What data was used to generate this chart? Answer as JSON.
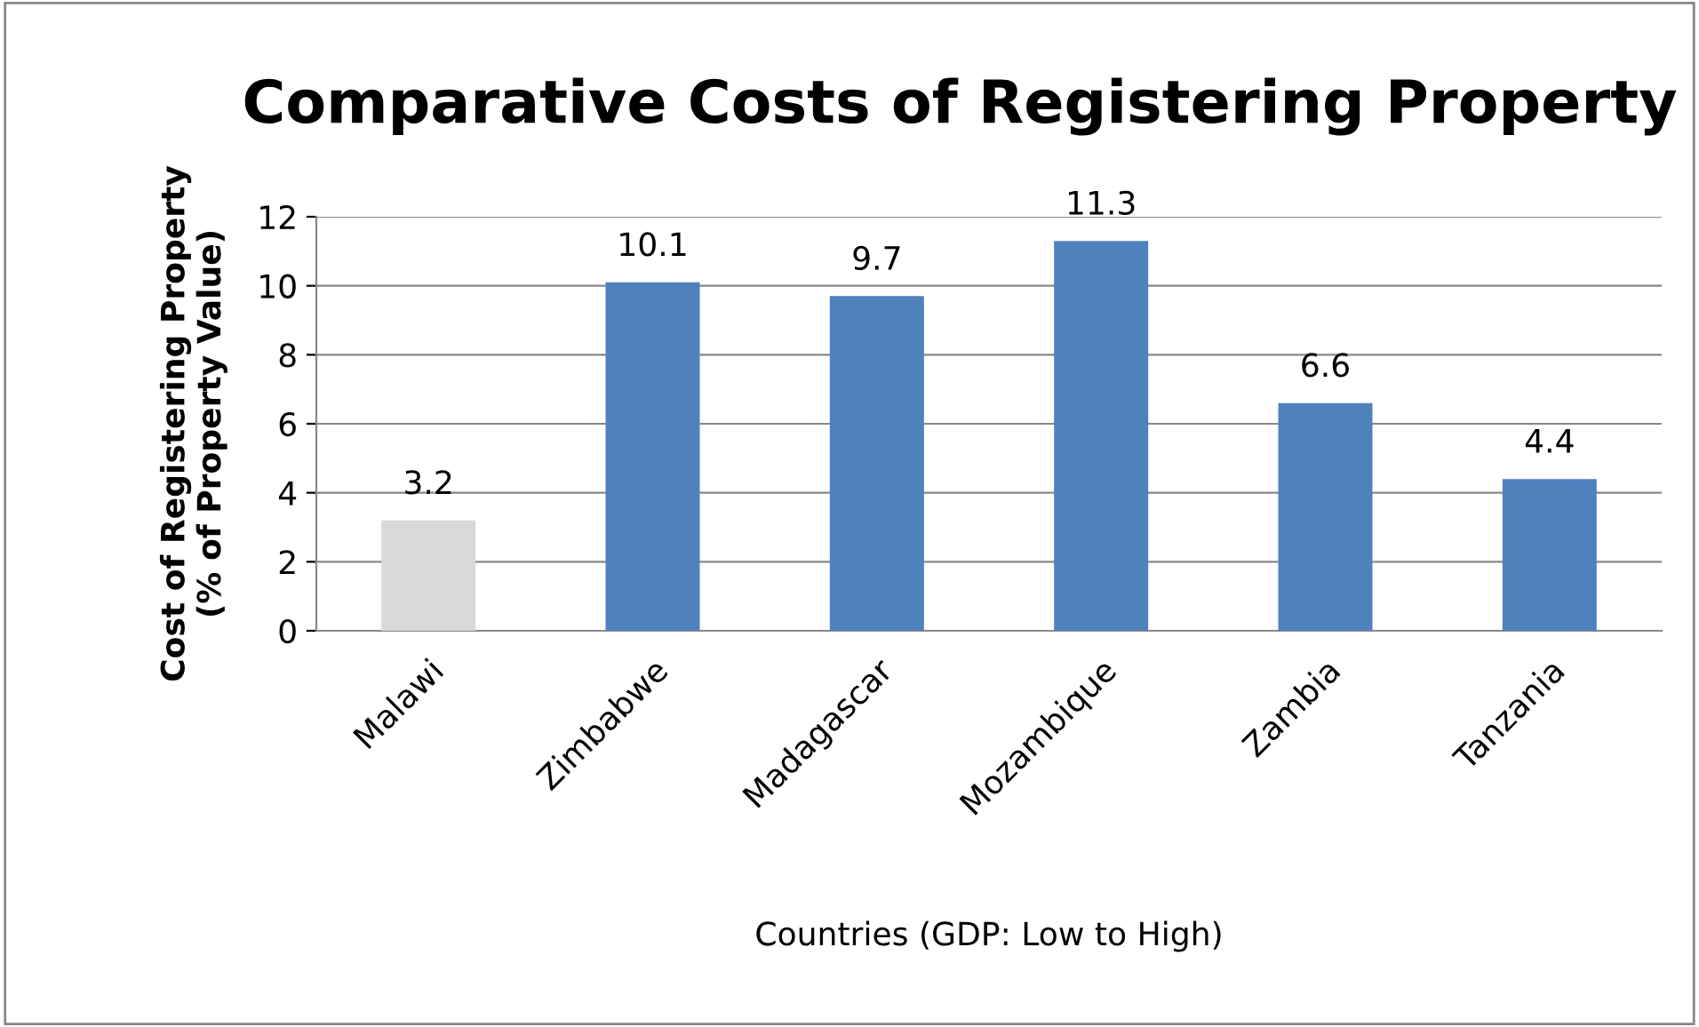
{
  "chart_data": {
    "type": "bar",
    "title": "Comparative Costs of Registering Property",
    "xlabel": "Countries (GDP: Low to High)",
    "ylabel": "Cost of Registering Property\n(% of Property Value)",
    "categories": [
      "Malawi",
      "Zimbabwe",
      "Madagascar",
      "Mozambique",
      "Zambia",
      "Tanzania"
    ],
    "values": [
      3.2,
      10.1,
      9.7,
      11.3,
      6.6,
      4.4
    ],
    "colors": [
      "#d9d9d9",
      "#4f81bd",
      "#4f81bd",
      "#4f81bd",
      "#4f81bd",
      "#4f81bd"
    ],
    "ylim": [
      0,
      12
    ],
    "yticks": [
      0,
      2,
      4,
      6,
      8,
      10,
      12
    ],
    "grid": "y",
    "data_labels": true,
    "legend": false
  }
}
